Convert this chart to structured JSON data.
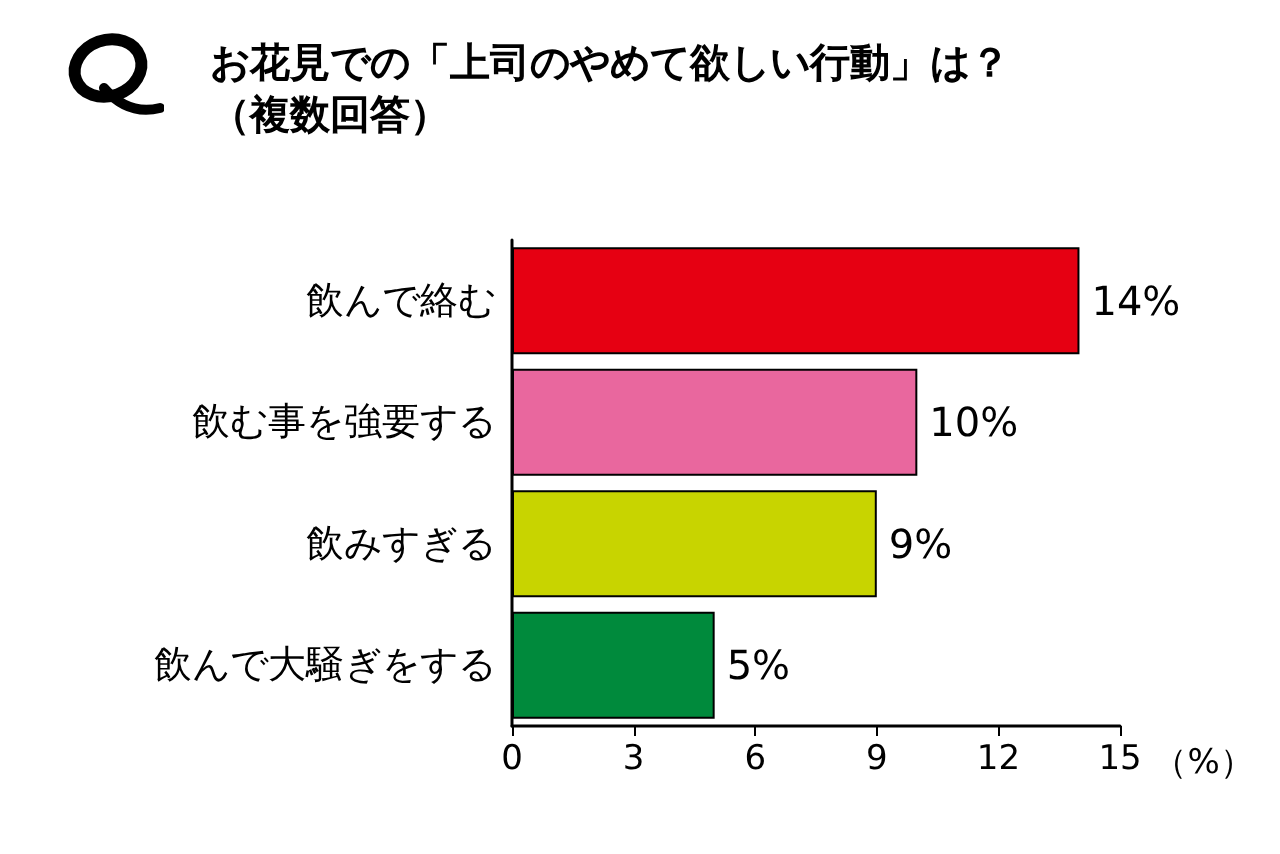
{
  "chart_data": {
    "type": "bar",
    "orientation": "horizontal",
    "title": "お花見での「上司のやめて欲しい行動」は？",
    "subtitle": "（複数回答）",
    "xlabel": "（%）",
    "categories": [
      "飲んで絡む",
      "飲む事を強要する",
      "飲みすぎる",
      "飲んで大騒ぎをする"
    ],
    "values": [
      14,
      10,
      9,
      5
    ],
    "colors": [
      "#e60012",
      "#e9679e",
      "#c8d400",
      "#008a3c"
    ],
    "value_labels": [
      "14%",
      "10%",
      "9%",
      "5%"
    ],
    "xlim": [
      0,
      15
    ],
    "xticks": [
      0,
      3,
      6,
      9,
      12,
      15
    ],
    "grid": false
  }
}
